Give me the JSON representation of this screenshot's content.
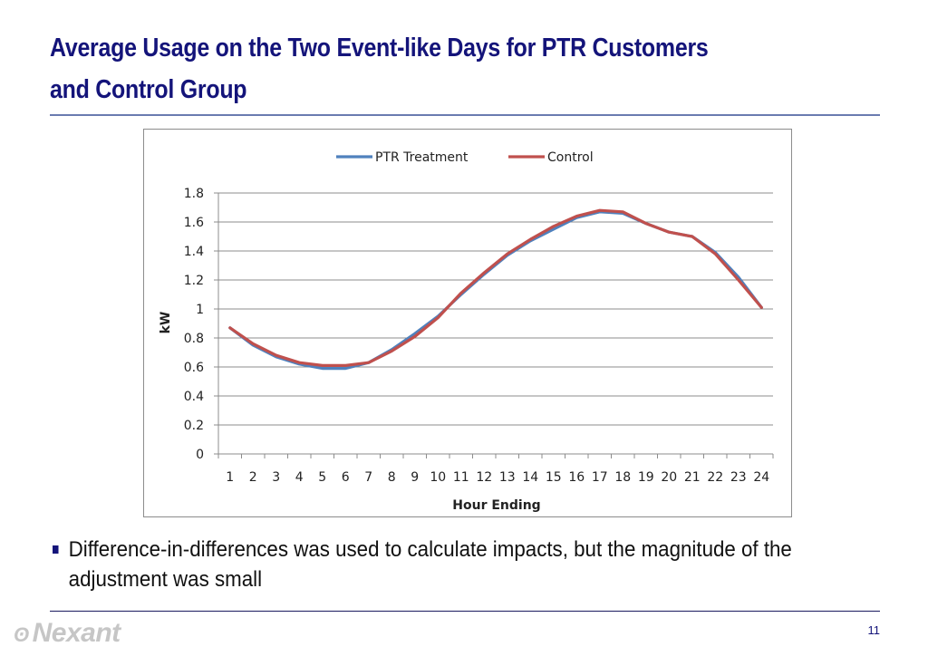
{
  "slide": {
    "title_line1": "Average Usage on the Two Event-like Days for PTR Customers",
    "title_line2": "and Control Group",
    "bullet": "Difference-in-differences was used to calculate impacts, but the magnitude of the adjustment was small",
    "logo_text": "Nexant",
    "logo_icon": "nexant-swirl-icon",
    "page_number": "11",
    "colors": {
      "title": "#14147a",
      "rule": "#6a7bb0",
      "logo": "#c6c6c6"
    }
  },
  "chart_data": {
    "type": "line",
    "title": "",
    "xlabel": "Hour Ending",
    "ylabel": "kW",
    "x": [
      1,
      2,
      3,
      4,
      5,
      6,
      7,
      8,
      9,
      10,
      11,
      12,
      13,
      14,
      15,
      16,
      17,
      18,
      19,
      20,
      21,
      22,
      23,
      24
    ],
    "x_tick_labels": [
      "1",
      "2",
      "3",
      "4",
      "5",
      "6",
      "7",
      "8",
      "9",
      "10",
      "11",
      "12",
      "13",
      "14",
      "15",
      "16",
      "17",
      "18",
      "19",
      "20",
      "21",
      "22",
      "23",
      "24"
    ],
    "y_tick_labels": [
      "0",
      "0.2",
      "0.4",
      "0.6",
      "0.8",
      "1",
      "1.2",
      "1.4",
      "1.6",
      "1.8"
    ],
    "ylim": [
      0,
      1.8
    ],
    "y_step": 0.2,
    "grid": true,
    "legend_position": "top",
    "series": [
      {
        "name": "PTR Treatment",
        "color": "#4f81bd",
        "values": [
          0.87,
          0.75,
          0.67,
          0.62,
          0.59,
          0.59,
          0.63,
          0.72,
          0.83,
          0.95,
          1.1,
          1.24,
          1.37,
          1.47,
          1.55,
          1.63,
          1.67,
          1.66,
          1.59,
          1.53,
          1.5,
          1.39,
          1.22,
          1.01
        ]
      },
      {
        "name": "Control",
        "color": "#c0504d",
        "values": [
          0.87,
          0.76,
          0.68,
          0.63,
          0.61,
          0.61,
          0.63,
          0.71,
          0.81,
          0.94,
          1.11,
          1.25,
          1.38,
          1.48,
          1.57,
          1.64,
          1.68,
          1.67,
          1.59,
          1.53,
          1.5,
          1.38,
          1.2,
          1.01
        ]
      }
    ]
  }
}
